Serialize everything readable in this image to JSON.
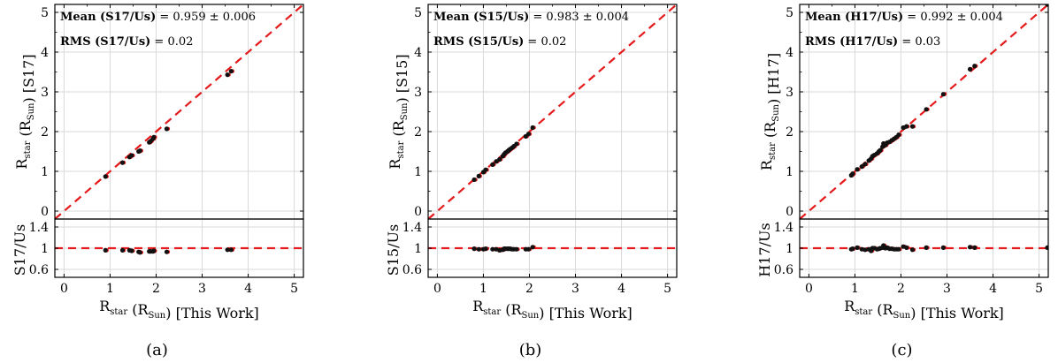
{
  "chart_data": [
    {
      "type": "scatter",
      "panel_caption": "(a)",
      "catalog": "S17",
      "main": {
        "xlabel": "R_star (R_Sun) [This Work]",
        "ylabel": "R_star (R_Sun) [S17]",
        "xlim": [
          -0.2,
          5.2
        ],
        "ylim": [
          -0.2,
          5.2
        ],
        "xticks": [
          0,
          1,
          2,
          3,
          4,
          5
        ],
        "yticks": [
          0,
          1,
          2,
          3,
          4,
          5
        ],
        "annotations": [
          {
            "bold": "Mean (S17/Us)",
            "value": "= 0.959 ± 0.006"
          },
          {
            "bold": "RMS (S17/Us)",
            "value": "= 0.02"
          }
        ],
        "reference_line": "y = x",
        "points": [
          [
            0.9,
            0.87
          ],
          [
            1.27,
            1.22
          ],
          [
            1.42,
            1.36
          ],
          [
            1.47,
            1.4
          ],
          [
            1.62,
            1.5
          ],
          [
            1.65,
            1.52
          ],
          [
            1.85,
            1.73
          ],
          [
            1.88,
            1.76
          ],
          [
            1.93,
            1.82
          ],
          [
            1.95,
            1.86
          ],
          [
            2.23,
            2.07
          ],
          [
            3.55,
            3.43
          ],
          [
            3.63,
            3.52
          ]
        ]
      },
      "ratio": {
        "ylabel": "S17/Us",
        "ylim": [
          0.45,
          1.55
        ],
        "yticks": [
          0.6,
          1,
          1.4
        ],
        "ytick_labels": [
          "0.6",
          "1",
          "1.4"
        ],
        "reference_value": 1,
        "points": [
          [
            0.9,
            0.96
          ],
          [
            1.27,
            0.96
          ],
          [
            1.42,
            0.96
          ],
          [
            1.47,
            0.95
          ],
          [
            1.62,
            0.93
          ],
          [
            1.65,
            0.92
          ],
          [
            1.85,
            0.94
          ],
          [
            1.88,
            0.94
          ],
          [
            1.93,
            0.94
          ],
          [
            1.95,
            0.95
          ],
          [
            2.23,
            0.93
          ],
          [
            3.55,
            0.97
          ],
          [
            3.63,
            0.97
          ]
        ]
      }
    },
    {
      "type": "scatter",
      "panel_caption": "(b)",
      "catalog": "S15",
      "main": {
        "xlabel": "R_star (R_Sun) [This Work]",
        "ylabel": "R_star (R_Sun) [S15]",
        "xlim": [
          -0.2,
          5.2
        ],
        "ylim": [
          -0.2,
          5.2
        ],
        "xticks": [
          0,
          1,
          2,
          3,
          4,
          5
        ],
        "yticks": [
          0,
          1,
          2,
          3,
          4,
          5
        ],
        "annotations": [
          {
            "bold": "Mean (S15/Us)",
            "value": "= 0.983 ± 0.004"
          },
          {
            "bold": "RMS (S15/Us)",
            "value": "= 0.02"
          }
        ],
        "reference_line": "y = x",
        "points": [
          [
            0.8,
            0.79
          ],
          [
            0.9,
            0.88
          ],
          [
            1.0,
            0.98
          ],
          [
            1.05,
            1.04
          ],
          [
            1.2,
            1.17
          ],
          [
            1.28,
            1.25
          ],
          [
            1.35,
            1.3
          ],
          [
            1.42,
            1.38
          ],
          [
            1.45,
            1.43
          ],
          [
            1.48,
            1.47
          ],
          [
            1.52,
            1.5
          ],
          [
            1.55,
            1.53
          ],
          [
            1.58,
            1.56
          ],
          [
            1.62,
            1.59
          ],
          [
            1.66,
            1.63
          ],
          [
            1.72,
            1.69
          ],
          [
            1.92,
            1.88
          ],
          [
            1.98,
            1.94
          ],
          [
            2.07,
            2.1
          ]
        ]
      },
      "ratio": {
        "ylabel": "S15/Us",
        "ylim": [
          0.45,
          1.55
        ],
        "yticks": [
          0.6,
          1,
          1.4
        ],
        "ytick_labels": [
          "0.6",
          "1",
          "1.4"
        ],
        "reference_value": 1,
        "points": [
          [
            0.8,
            0.99
          ],
          [
            0.9,
            0.98
          ],
          [
            1.0,
            0.98
          ],
          [
            1.05,
            0.99
          ],
          [
            1.2,
            0.98
          ],
          [
            1.28,
            0.98
          ],
          [
            1.35,
            0.96
          ],
          [
            1.42,
            0.97
          ],
          [
            1.45,
            0.99
          ],
          [
            1.48,
            0.99
          ],
          [
            1.52,
            0.99
          ],
          [
            1.55,
            0.99
          ],
          [
            1.58,
            0.99
          ],
          [
            1.62,
            0.98
          ],
          [
            1.66,
            0.98
          ],
          [
            1.72,
            0.98
          ],
          [
            1.92,
            0.98
          ],
          [
            1.98,
            0.98
          ],
          [
            2.07,
            1.02
          ]
        ]
      }
    },
    {
      "type": "scatter",
      "panel_caption": "(c)",
      "catalog": "H17",
      "main": {
        "xlabel": "R_star (R_Sun) [This Work]",
        "ylabel": "R_star (R_Sun) [H17]",
        "xlim": [
          -0.2,
          5.2
        ],
        "ylim": [
          -0.2,
          5.2
        ],
        "xticks": [
          0,
          1,
          2,
          3,
          4,
          5
        ],
        "yticks": [
          0,
          1,
          2,
          3,
          4,
          5
        ],
        "annotations": [
          {
            "bold": "Mean (H17/Us)",
            "value": "= 0.992 ± 0.004"
          },
          {
            "bold": "RMS (H17/Us)",
            "value": "= 0.03"
          }
        ],
        "reference_line": "y = x",
        "points": [
          [
            0.92,
            0.9
          ],
          [
            0.95,
            0.94
          ],
          [
            1.05,
            1.05
          ],
          [
            1.15,
            1.12
          ],
          [
            1.22,
            1.18
          ],
          [
            1.3,
            1.27
          ],
          [
            1.35,
            1.32
          ],
          [
            1.38,
            1.38
          ],
          [
            1.42,
            1.41
          ],
          [
            1.48,
            1.45
          ],
          [
            1.52,
            1.5
          ],
          [
            1.55,
            1.53
          ],
          [
            1.6,
            1.62
          ],
          [
            1.62,
            1.7
          ],
          [
            1.66,
            1.66
          ],
          [
            1.7,
            1.72
          ],
          [
            1.75,
            1.74
          ],
          [
            1.8,
            1.78
          ],
          [
            1.85,
            1.82
          ],
          [
            1.9,
            1.86
          ],
          [
            1.95,
            1.92
          ],
          [
            2.05,
            2.1
          ],
          [
            2.12,
            2.13
          ],
          [
            2.25,
            2.13
          ],
          [
            2.55,
            2.56
          ],
          [
            2.92,
            2.94
          ],
          [
            3.5,
            3.57
          ],
          [
            3.6,
            3.65
          ],
          [
            5.18,
            5.2
          ]
        ]
      },
      "ratio": {
        "ylabel": "H17/Us",
        "ylim": [
          0.45,
          1.55
        ],
        "yticks": [
          0.6,
          1,
          1.4
        ],
        "ytick_labels": [
          "0.6",
          "1",
          "1.4"
        ],
        "reference_value": 1,
        "points": [
          [
            0.92,
            0.98
          ],
          [
            0.95,
            0.99
          ],
          [
            1.05,
            1.01
          ],
          [
            1.15,
            0.98
          ],
          [
            1.22,
            0.97
          ],
          [
            1.3,
            0.98
          ],
          [
            1.35,
            0.95
          ],
          [
            1.38,
            1.0
          ],
          [
            1.42,
            1.0
          ],
          [
            1.48,
            0.98
          ],
          [
            1.52,
            0.99
          ],
          [
            1.55,
            1.0
          ],
          [
            1.6,
            1.01
          ],
          [
            1.62,
            1.05
          ],
          [
            1.66,
            1.0
          ],
          [
            1.7,
            1.01
          ],
          [
            1.75,
            0.99
          ],
          [
            1.8,
            0.99
          ],
          [
            1.85,
            0.98
          ],
          [
            1.9,
            0.98
          ],
          [
            1.95,
            0.98
          ],
          [
            2.05,
            1.03
          ],
          [
            2.12,
            1.01
          ],
          [
            2.25,
            0.97
          ],
          [
            2.55,
            1.01
          ],
          [
            2.92,
            1.01
          ],
          [
            3.5,
            1.02
          ],
          [
            3.6,
            1.01
          ],
          [
            5.18,
            1.01
          ]
        ]
      }
    }
  ]
}
